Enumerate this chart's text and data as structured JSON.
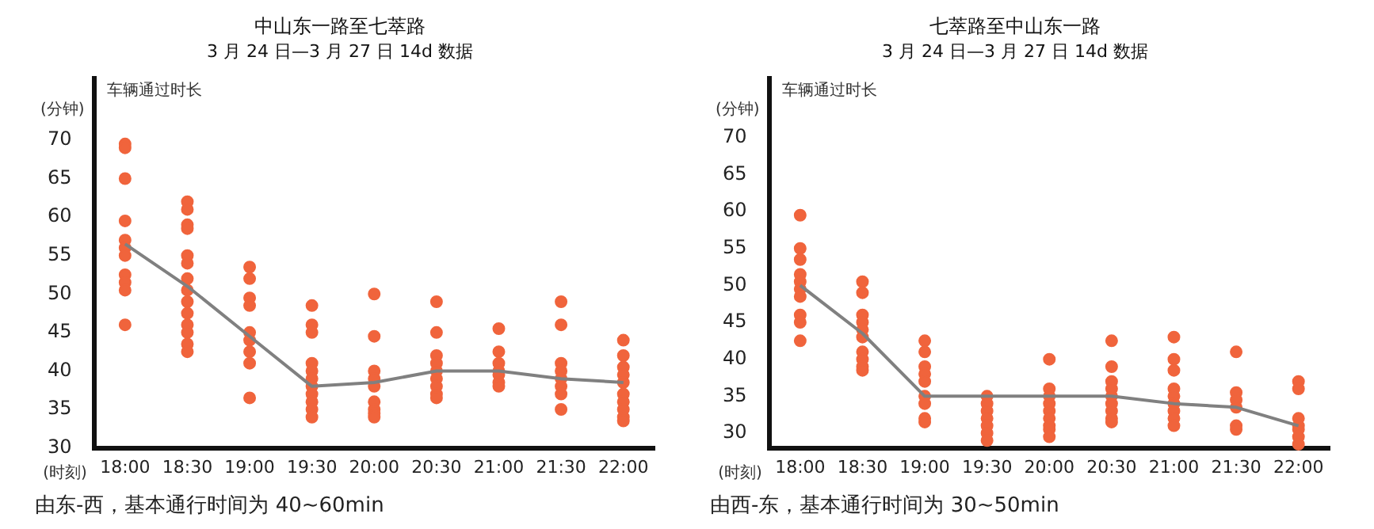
{
  "chart_data": [
    {
      "type": "scatter",
      "title": "中山东一路至七萃路",
      "subtitle": "3 月 24 日—3 月 27 日 14d 数据",
      "ylabel": "车辆通过时长",
      "xlabel": "(时刻)",
      "annotations": [
        "(分钟)",
        "由东-西，基本通行时间为 40~60min"
      ],
      "categories": [
        "18:00",
        "18:30",
        "19:00",
        "19:30",
        "20:00",
        "20:30",
        "21:00",
        "21:30",
        "22:00"
      ],
      "ylim": [
        30,
        78
      ],
      "yticks": [
        30,
        35,
        40,
        45,
        50,
        55,
        60,
        65,
        70
      ],
      "grid": false,
      "legend": false,
      "series": [
        {
          "type": "scatter",
          "marker": "circle",
          "color": "#f0643c",
          "x": [
            "18:00",
            "18:00",
            "18:00",
            "18:00",
            "18:00",
            "18:00",
            "18:00",
            "18:00",
            "18:00",
            "18:00",
            "18:00",
            "18:30",
            "18:30",
            "18:30",
            "18:30",
            "18:30",
            "18:30",
            "18:30",
            "18:30",
            "18:30",
            "18:30",
            "18:30",
            "18:30",
            "18:30",
            "18:30",
            "19:00",
            "19:00",
            "19:00",
            "19:00",
            "19:00",
            "19:00",
            "19:00",
            "19:00",
            "19:00",
            "19:30",
            "19:30",
            "19:30",
            "19:30",
            "19:30",
            "19:30",
            "19:30",
            "19:30",
            "19:30",
            "19:30",
            "19:30",
            "20:00",
            "20:00",
            "20:00",
            "20:00",
            "20:00",
            "20:00",
            "20:00",
            "20:00",
            "20:00",
            "20:30",
            "20:30",
            "20:30",
            "20:30",
            "20:30",
            "20:30",
            "20:30",
            "20:30",
            "20:30",
            "21:00",
            "21:00",
            "21:00",
            "21:00",
            "21:00",
            "21:00",
            "21:00",
            "21:30",
            "21:30",
            "21:30",
            "21:30",
            "21:30",
            "21:30",
            "21:30",
            "21:30",
            "22:00",
            "22:00",
            "22:00",
            "22:00",
            "22:00",
            "22:00",
            "22:00",
            "22:00",
            "22:00",
            "22:00"
          ],
          "values": [
            69.5,
            69,
            65,
            59.5,
            57,
            56,
            55,
            52.5,
            51.5,
            50.5,
            46,
            62,
            61,
            59,
            58.5,
            55,
            54,
            52,
            50.5,
            49,
            47.5,
            46,
            45,
            43.5,
            42.5,
            53.5,
            52,
            49.5,
            48.5,
            45,
            44,
            42.5,
            41,
            36.5,
            48.5,
            46,
            45,
            41,
            40,
            39,
            38,
            37,
            36,
            35,
            34,
            50,
            44.5,
            40,
            39,
            38,
            36,
            35,
            34.5,
            34,
            49,
            45,
            42,
            41,
            40,
            39,
            38,
            37,
            36.5,
            45.5,
            42.5,
            41,
            40,
            39.5,
            38.5,
            38,
            49,
            46,
            41,
            40,
            39,
            38,
            37,
            35,
            44,
            42,
            40.5,
            39.5,
            38.5,
            37,
            36,
            35,
            34,
            33.5
          ]
        },
        {
          "type": "line",
          "marker": "none",
          "color": "#808080",
          "values": [
            56.5,
            51,
            44.5,
            38,
            38.5,
            40,
            40,
            39,
            38.5
          ]
        }
      ]
    },
    {
      "type": "scatter",
      "title": "七萃路至中山东一路",
      "subtitle": "3 月 24 日—3 月 27 日 14d 数据",
      "ylabel": "车辆通过时长",
      "xlabel": "(时刻)",
      "annotations": [
        "(分钟)",
        "由西-东，基本通行时间为 30~50min"
      ],
      "categories": [
        "18:00",
        "18:30",
        "19:00",
        "19:30",
        "20:00",
        "20:30",
        "21:00",
        "21:30",
        "22:00"
      ],
      "ylim": [
        28,
        78
      ],
      "yticks": [
        30,
        35,
        40,
        45,
        50,
        55,
        60,
        65,
        70
      ],
      "grid": false,
      "legend": false,
      "series": [
        {
          "type": "scatter",
          "marker": "circle",
          "color": "#f0643c",
          "x": [
            "18:00",
            "18:00",
            "18:00",
            "18:00",
            "18:00",
            "18:00",
            "18:00",
            "18:00",
            "18:00",
            "18:00",
            "18:30",
            "18:30",
            "18:30",
            "18:30",
            "18:30",
            "18:30",
            "18:30",
            "18:30",
            "18:30",
            "18:30",
            "19:00",
            "19:00",
            "19:00",
            "19:00",
            "19:00",
            "19:00",
            "19:00",
            "19:00",
            "19:00",
            "19:30",
            "19:30",
            "19:30",
            "19:30",
            "19:30",
            "19:30",
            "19:30",
            "20:00",
            "20:00",
            "20:00",
            "20:00",
            "20:00",
            "20:00",
            "20:00",
            "20:00",
            "20:00",
            "20:30",
            "20:30",
            "20:30",
            "20:30",
            "20:30",
            "20:30",
            "20:30",
            "20:30",
            "20:30",
            "21:00",
            "21:00",
            "21:00",
            "21:00",
            "21:00",
            "21:00",
            "21:00",
            "21:00",
            "21:00",
            "21:30",
            "21:30",
            "21:30",
            "21:30",
            "21:30",
            "21:30",
            "22:00",
            "22:00",
            "22:00",
            "22:00",
            "22:00",
            "22:00",
            "22:00"
          ],
          "values": [
            59.5,
            55,
            53.5,
            51.5,
            50.5,
            49.5,
            48.5,
            46,
            45,
            42.5,
            50.5,
            49,
            46,
            45,
            44,
            43,
            41,
            40,
            39,
            38.5,
            42.5,
            41,
            39,
            38,
            37,
            35,
            34,
            32,
            31.5,
            35,
            34,
            33,
            32,
            31,
            30,
            29,
            40,
            36,
            35,
            34,
            33,
            32,
            31,
            30.5,
            29.5,
            42.5,
            39,
            37,
            36,
            35,
            34,
            33,
            32,
            31.5,
            43,
            40,
            38.5,
            36,
            35,
            34,
            33,
            32,
            31,
            41,
            35.5,
            34.5,
            33.5,
            31,
            30.5,
            37,
            36,
            32,
            31,
            30.5,
            29.5,
            28.5
          ]
        },
        {
          "type": "line",
          "marker": "none",
          "color": "#808080",
          "values": [
            50,
            43.5,
            35,
            35,
            35,
            35,
            34,
            33.5,
            31
          ]
        }
      ]
    }
  ]
}
